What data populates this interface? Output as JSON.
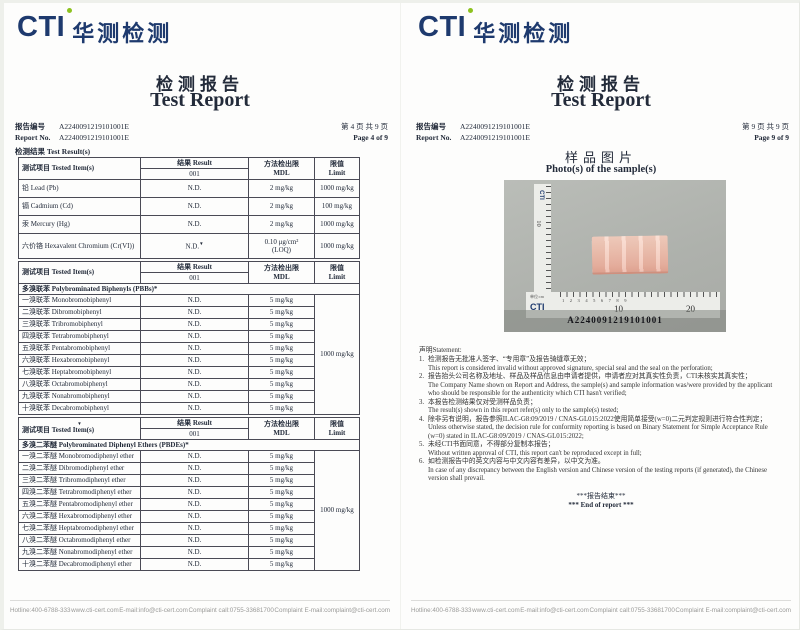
{
  "brand": {
    "cti": "CTI",
    "cn": "华测检测",
    "navy": "#1e3a6e",
    "green": "#8dc21f"
  },
  "footer": {
    "items": [
      "Hotline:400-6788-333",
      "www.cti-cert.com",
      "E-mail:info@cti-cert.com",
      "Complaint call:0755-33681700",
      "Complaint E-mail:complaint@cti-cert.com"
    ]
  },
  "left": {
    "title_cn": "检测报告",
    "title_en": "Test Report",
    "report_no_cn": "报告编号",
    "report_no_en": "Report No.",
    "report_no": "A2240091219101001E",
    "page_cn": "第 4 页  共 9 页",
    "page_en": "Page 4 of 9",
    "results_label": "检测结果  Test Result(s)",
    "hdr": {
      "item": "测试项目  Tested Item(s)",
      "result": "结果  Result",
      "result_sub": "001",
      "mdl_cn": "方法检出限",
      "mdl_en": "MDL",
      "limit_cn": "限值",
      "limit_en": "Limit"
    },
    "table1": {
      "rows": [
        {
          "item": "铅  Lead (Pb)",
          "result": "N.D.",
          "mdl": "2 mg/kg",
          "limit": "1000 mg/kg"
        },
        {
          "item": "镉  Cadmium (Cd)",
          "result": "N.D.",
          "mdl": "2 mg/kg",
          "limit": "100 mg/kg"
        },
        {
          "item": "汞  Mercury (Hg)",
          "result": "N.D.",
          "mdl": "2 mg/kg",
          "limit": "1000 mg/kg"
        },
        {
          "item": "六价铬  Hexavalent Chromium (Cr(VI))",
          "result": "N.D.",
          "result_mark": "▼",
          "mdl": "0.10 μg/cm²",
          "mdl2": "(LOQ)",
          "limit": "1000 mg/kg"
        }
      ]
    },
    "table2": {
      "section": "多溴联苯  Polybrominated Biphenyls (PBBs)*",
      "limit": "1000 mg/kg",
      "rows": [
        {
          "item": "一溴联苯  Monobromobiphenyl",
          "result": "N.D.",
          "mdl": "5 mg/kg"
        },
        {
          "item": "二溴联苯  Dibromobiphenyl",
          "result": "N.D.",
          "mdl": "5 mg/kg"
        },
        {
          "item": "三溴联苯  Tribromobiphenyl",
          "result": "N.D.",
          "mdl": "5 mg/kg"
        },
        {
          "item": "四溴联苯  Tetrabromobiphenyl",
          "result": "N.D.",
          "mdl": "5 mg/kg"
        },
        {
          "item": "五溴联苯  Pentabromobiphenyl",
          "result": "N.D.",
          "mdl": "5 mg/kg"
        },
        {
          "item": "六溴联苯  Hexabromobiphenyl",
          "result": "N.D.",
          "mdl": "5 mg/kg"
        },
        {
          "item": "七溴联苯  Heptabromobiphenyl",
          "result": "N.D.",
          "mdl": "5 mg/kg"
        },
        {
          "item": "八溴联苯  Octabromobiphenyl",
          "result": "N.D.",
          "mdl": "5 mg/kg"
        },
        {
          "item": "九溴联苯  Nonabromobiphenyl",
          "result": "N.D.",
          "mdl": "5 mg/kg"
        },
        {
          "item": "十溴联苯  Decabromobiphenyl",
          "result": "N.D.",
          "mdl": "5 mg/kg"
        }
      ]
    },
    "table3": {
      "mark": "▼",
      "section": "多溴二苯醚  Polybrominated Diphenyl Ethers (PBDEs)*",
      "limit": "1000 mg/kg",
      "rows": [
        {
          "item": "一溴二苯醚  Monobromodiphenyl ether",
          "result": "N.D.",
          "mdl": "5 mg/kg"
        },
        {
          "item": "二溴二苯醚  Dibromodiphenyl ether",
          "result": "N.D.",
          "mdl": "5 mg/kg"
        },
        {
          "item": "三溴二苯醚  Tribromodiphenyl ether",
          "result": "N.D.",
          "mdl": "5 mg/kg"
        },
        {
          "item": "四溴二苯醚  Tetrabromodiphenyl ether",
          "result": "N.D.",
          "mdl": "5 mg/kg"
        },
        {
          "item": "五溴二苯醚  Pentabromodiphenyl ether",
          "result": "N.D.",
          "mdl": "5 mg/kg"
        },
        {
          "item": "六溴二苯醚  Hexabromodiphenyl ether",
          "result": "N.D.",
          "mdl": "5 mg/kg"
        },
        {
          "item": "七溴二苯醚  Heptabromodiphenyl ether",
          "result": "N.D.",
          "mdl": "5 mg/kg"
        },
        {
          "item": "八溴二苯醚  Octabromodiphenyl ether",
          "result": "N.D.",
          "mdl": "5 mg/kg"
        },
        {
          "item": "九溴二苯醚  Nonabromodiphenyl ether",
          "result": "N.D.",
          "mdl": "5 mg/kg"
        },
        {
          "item": "十溴二苯醚  Decabromodiphenyl ether",
          "result": "N.D.",
          "mdl": "5 mg/kg"
        }
      ]
    }
  },
  "right": {
    "title_cn": "检测报告",
    "title_en": "Test Report",
    "report_no_cn": "报告编号",
    "report_no_en": "Report No.",
    "report_no": "A2240091219101001E",
    "page_cn": "第 9 页  共 9 页",
    "page_en": "Page 9 of 9",
    "photo_title_cn": "样品图片",
    "photo_title_en": "Photo(s) of the sample(s)",
    "photo": {
      "caption": "A2240091219101001",
      "ruler_cti": "CTI",
      "ruler_corner_cti": "CTI",
      "ruler_unit": "单位:cm",
      "ruler_small_nums": "1 2 3 4 5 6 7 8 9",
      "ruler_10": "10",
      "ruler_20": "20",
      "ruler_v10": "10"
    },
    "statement_title": "声明Statement:",
    "statement": [
      {
        "no": "1.",
        "cn": "检测报告无批准人签字、“专用章”及报告骑缝章无效；",
        "en": "This report is considered invalid without approved signature, special seal and the seal on the perforation;"
      },
      {
        "no": "2.",
        "cn": "报告抬头公司名称及地址、样品及样品信息由申请者提供，申请者应对其真实性负责，CTI未核实其真实性；",
        "en": "The Company Name shown on Report and Address, the sample(s) and sample information was/were provided by the applicant who should be responsible for the authenticity which CTI hasn't verified;"
      },
      {
        "no": "3.",
        "cn": "本报告检测结果仅对受测样品负责；",
        "en": "The result(s) shown in this report refer(s) only to the sample(s) tested;"
      },
      {
        "no": "4.",
        "cn": "除非另有说明，报告参照ILAC-G8:09/2019 / CNAS-GL015:2022使用简单接受(w=0)二元判定规则进行符合性判定；",
        "en": "Unless otherwise stated, the decision rule for conformity reporting is based on Binary Statement for Simple Acceptance Rule (w=0) stated in ILAC-G8:09/2019 / CNAS-GL015:2022;"
      },
      {
        "no": "5.",
        "cn": "未经CTI书面同意，不得部分复制本报告；",
        "en": "Without written approval of CTI, this report can't be reproduced except in full;"
      },
      {
        "no": "6.",
        "cn": "如检测报告中的英文内容与中文内容有差异，以中文为准。",
        "en": "In case of any discrepancy between the English version and Chinese version of the testing reports (if generated), the Chinese version shall prevail."
      }
    ],
    "end_cn": "***报告结束***",
    "end_en": "*** End of report ***"
  }
}
